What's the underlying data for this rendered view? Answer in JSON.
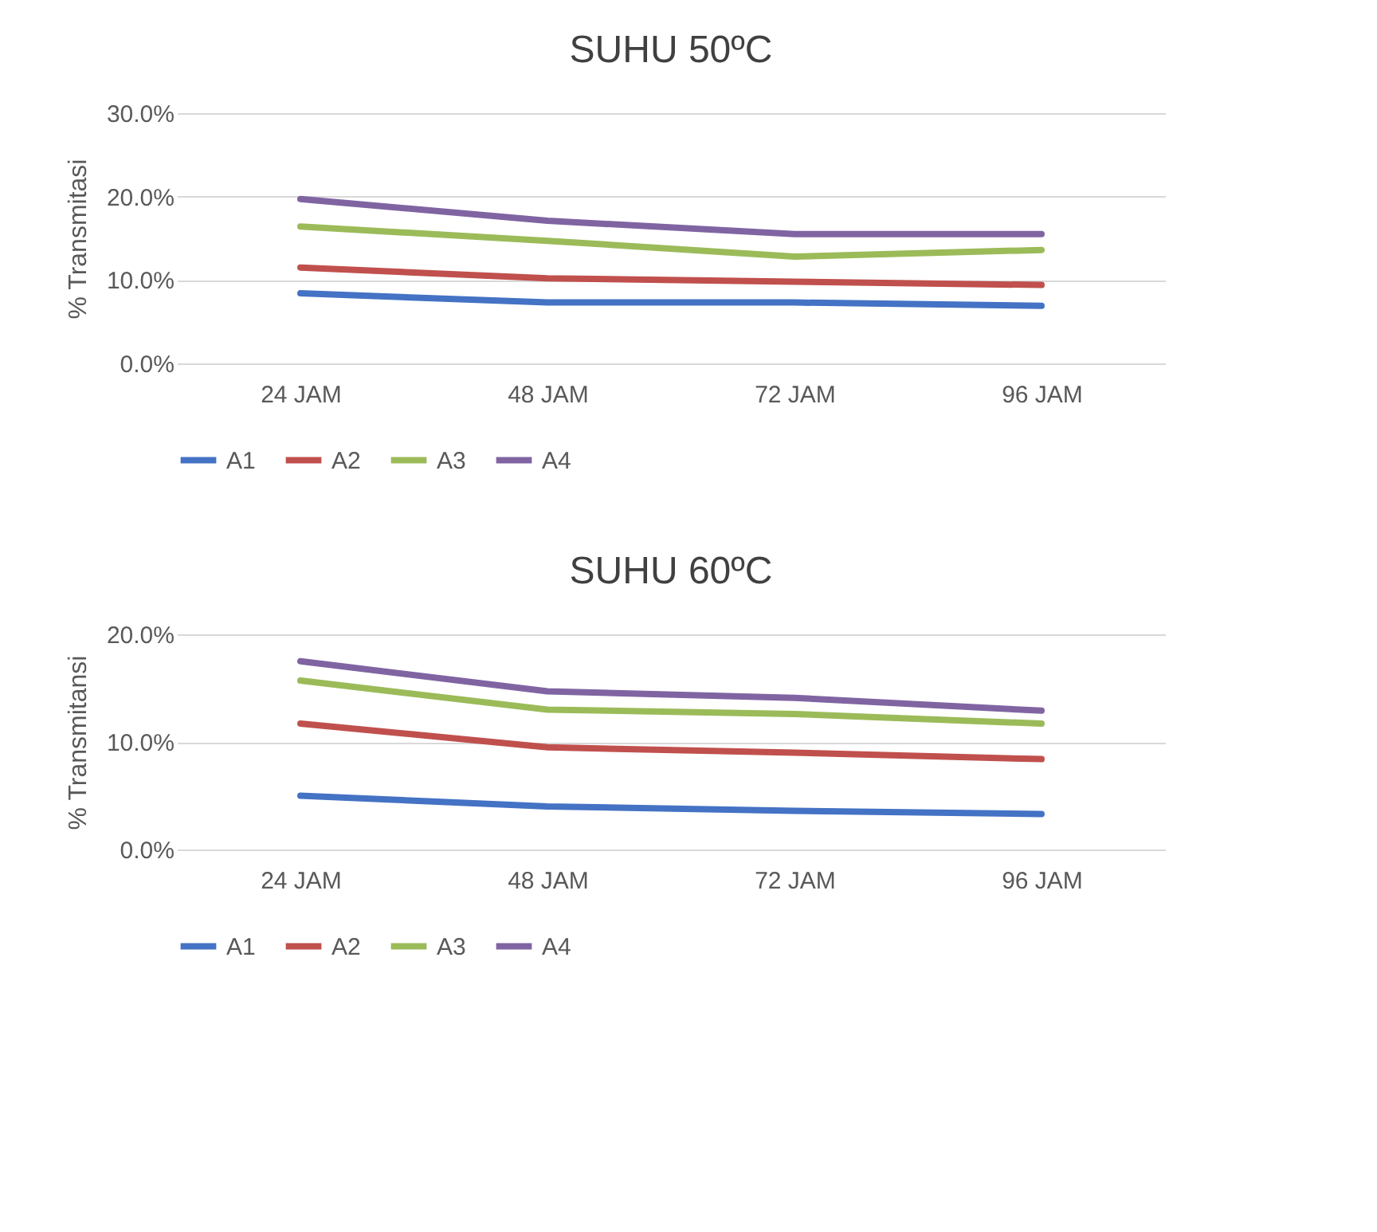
{
  "chart_data": [
    {
      "type": "line",
      "title": "SUHU 50ºC",
      "ylabel": "% Transmitasi",
      "categories": [
        "24 JAM",
        "48 JAM",
        "72 JAM",
        "96 JAM"
      ],
      "series": [
        {
          "name": "A1",
          "color": "#4472c4",
          "values": [
            8.4,
            7.3,
            7.3,
            6.9
          ]
        },
        {
          "name": "A2",
          "color": "#c0504d",
          "values": [
            11.5,
            10.2,
            9.8,
            9.4
          ]
        },
        {
          "name": "A3",
          "color": "#9bbb59",
          "values": [
            16.4,
            14.7,
            12.8,
            13.6
          ]
        },
        {
          "name": "A4",
          "color": "#8064a2",
          "values": [
            19.7,
            17.1,
            15.5,
            15.5
          ]
        }
      ],
      "ylim": [
        0,
        30
      ],
      "yticks": [
        {
          "value": 0,
          "label": "0.0%"
        },
        {
          "value": 10,
          "label": "10.0%"
        },
        {
          "value": 20,
          "label": "20.0%"
        },
        {
          "value": 30,
          "label": "30.0%"
        }
      ],
      "grid": "y",
      "legend": "bottom",
      "marker": "none",
      "line_style": "solid"
    },
    {
      "type": "line",
      "title": "SUHU 60ºC",
      "ylabel": "% Transmitansi",
      "categories": [
        "24 JAM",
        "48 JAM",
        "72 JAM",
        "96 JAM"
      ],
      "series": [
        {
          "name": "A1",
          "color": "#4472c4",
          "values": [
            5.0,
            4.0,
            3.6,
            3.3
          ]
        },
        {
          "name": "A2",
          "color": "#c0504d",
          "values": [
            11.7,
            9.5,
            9.0,
            8.4
          ]
        },
        {
          "name": "A3",
          "color": "#9bbb59",
          "values": [
            15.7,
            13.0,
            12.6,
            11.7
          ]
        },
        {
          "name": "A4",
          "color": "#8064a2",
          "values": [
            17.5,
            14.7,
            14.1,
            12.9
          ]
        }
      ],
      "ylim": [
        0,
        20
      ],
      "yticks": [
        {
          "value": 0,
          "label": "0.0%"
        },
        {
          "value": 10,
          "label": "10.0%"
        },
        {
          "value": 20,
          "label": "20.0%"
        }
      ],
      "grid": "y",
      "legend": "bottom",
      "marker": "none",
      "line_style": "solid"
    }
  ]
}
